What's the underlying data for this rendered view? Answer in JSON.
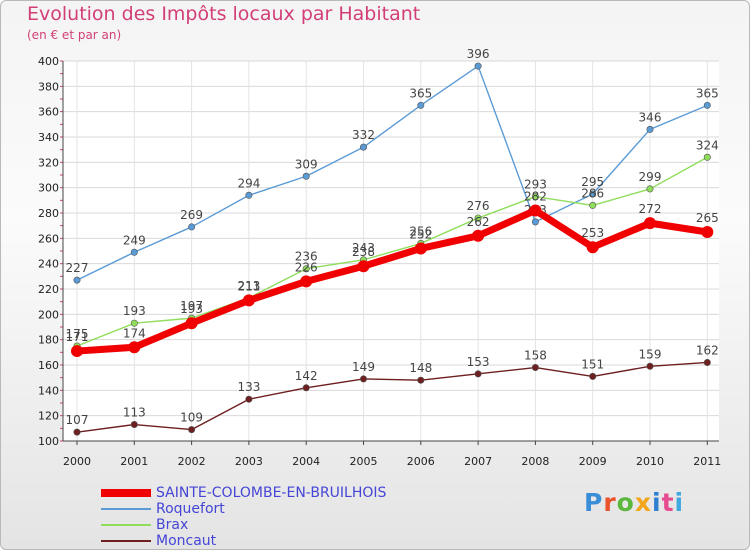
{
  "header": {
    "title": "Evolution des Impôts locaux par Habitant",
    "subtitle": "(en € et par an)"
  },
  "logo": {
    "text": "Proxiti",
    "colors": [
      "#3a8ed8",
      "#e8522c",
      "#5bb83c",
      "#f3a61c",
      "#2f7fd0",
      "#e64d8f",
      "#3fa9e0"
    ]
  },
  "chart_data": {
    "type": "line",
    "x": [
      "2000",
      "2001",
      "2002",
      "2003",
      "2004",
      "2005",
      "2006",
      "2007",
      "2008",
      "2009",
      "2010",
      "2011"
    ],
    "ylim": [
      100,
      400
    ],
    "yticks": [
      100,
      120,
      140,
      160,
      180,
      200,
      220,
      240,
      260,
      280,
      300,
      320,
      340,
      360,
      380,
      400
    ],
    "grid": true,
    "legend_position": "bottom-left",
    "series": [
      {
        "name": "Roquefort",
        "color": "#5b9bd5",
        "values": [
          227,
          249,
          269,
          294,
          309,
          332,
          365,
          396,
          273,
          295,
          346,
          365
        ]
      },
      {
        "name": "Brax",
        "color": "#8fdd5a",
        "values": [
          175,
          193,
          197,
          213,
          236,
          243,
          256,
          276,
          293,
          286,
          299,
          324
        ]
      },
      {
        "name": "Moncaut",
        "color": "#6e1f1f",
        "values": [
          107,
          113,
          109,
          133,
          142,
          149,
          148,
          153,
          158,
          151,
          159,
          162
        ]
      },
      {
        "name": "SAINTE-COLOMBE-EN-BRUILHOIS",
        "color": "#f00000",
        "values": [
          171,
          174,
          193,
          211,
          226,
          238,
          252,
          262,
          282,
          253,
          272,
          265
        ]
      }
    ],
    "legend": [
      "SAINTE-COLOMBE-EN-BRUILHOIS",
      "Roquefort",
      "Brax",
      "Moncaut"
    ]
  }
}
